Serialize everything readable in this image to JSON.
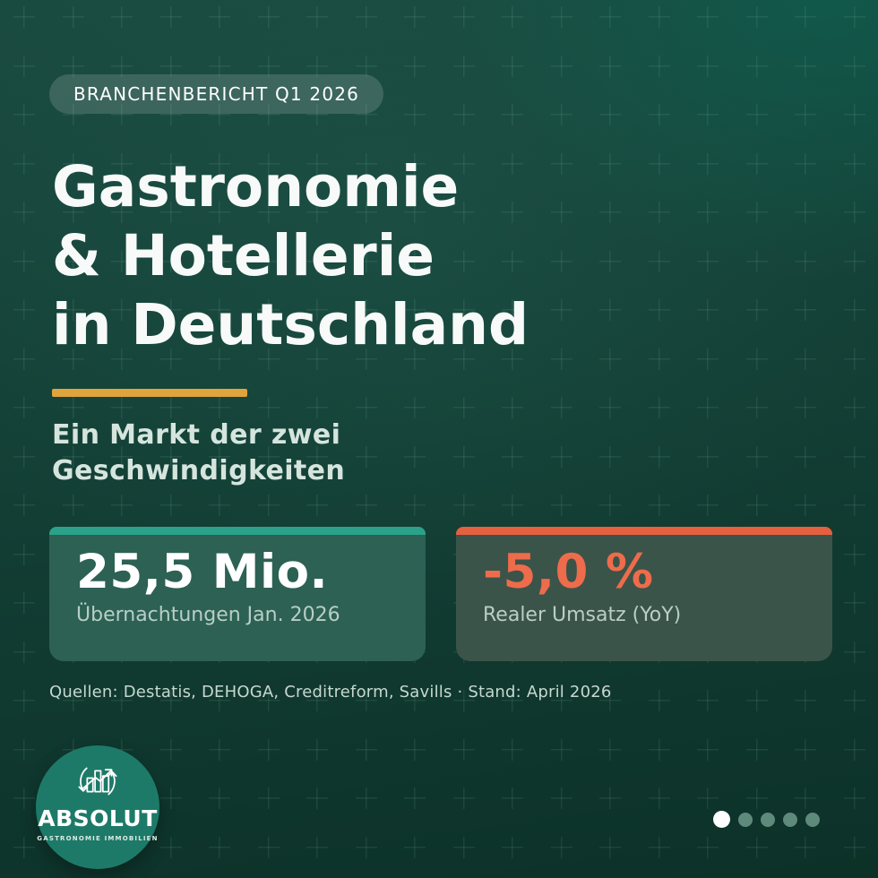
{
  "badge": {
    "label": "BRANCHENBERICHT Q1 2026"
  },
  "title": "Gastronomie\n& Hotellerie\nin Deutschland",
  "subtitle": "Ein Markt der zwei\nGeschwindigkeiten",
  "stats": [
    {
      "value": "25,5 Mio.",
      "label": "Übernachtungen Jan. 2026",
      "accent_color": "#2BA189",
      "card_color": "#2C6154",
      "value_color": "#FFFFFF"
    },
    {
      "value": "-5,0 %",
      "label": "Realer Umsatz (YoY)",
      "accent_color": "#E5603E",
      "card_color": "#3B5449",
      "value_color": "#EE6C4B"
    }
  ],
  "sources": "Quellen: Destatis, DEHOGA, Creditreform, Savills · Stand: April 2026",
  "logo": {
    "name": "ABSOLUT",
    "tagline": "GASTRONOMIE IMMOBILIEN",
    "icon": "bar-chart-growth-cycle-icon",
    "circle_color": "#1E7A68"
  },
  "pagination": {
    "total": 5,
    "active_index": 0,
    "active_color": "#FFFFFF",
    "inactive_color": "#5E8A7B"
  },
  "colors": {
    "divider_gold": "#DFA43C",
    "background_top": "#1A4B41",
    "background_bottom": "#0C3128",
    "title_text": "#F7FAF8",
    "subtitle_text": "#D5E5DE",
    "stat_label_text": "#B9CEC6"
  }
}
